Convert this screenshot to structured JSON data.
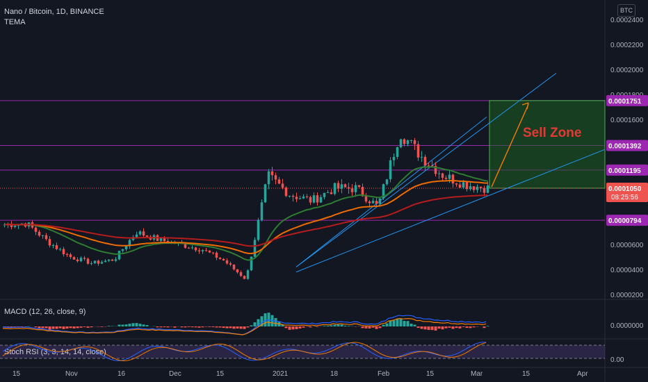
{
  "header": {
    "symbol_line": "Nano / Bitcoin, 1D, BINANCE",
    "indicator": "TEMA"
  },
  "currency_badge": "BTC",
  "price_axis": {
    "ticks": [
      "0.0002400",
      "0.0002200",
      "0.0002000",
      "0.0001800",
      "0.0001600",
      "0.0001400",
      "0.0001200",
      "0.0001000",
      "0.0000800",
      "0.0000600",
      "0.0000400",
      "0.0000200"
    ],
    "min": 2e-05,
    "max": 0.00024
  },
  "levels": [
    {
      "value": 0.0001751,
      "label": "0.0001751"
    },
    {
      "value": 0.0001392,
      "label": "0.0001392"
    },
    {
      "value": 0.0001195,
      "label": "0.0001195"
    },
    {
      "value": 7.94e-05,
      "label": "0.0000794"
    }
  ],
  "last_price": {
    "label": "0.0001050",
    "countdown": "08:25:56",
    "value": 0.000105
  },
  "annotation": {
    "text": "Sell Zone",
    "top": 0.0001751,
    "bottom": 0.000105
  },
  "time_axis": [
    "15",
    "Nov",
    "16",
    "Dec",
    "15",
    "2021",
    "18",
    "Feb",
    "15",
    "Mar",
    "15",
    "Apr"
  ],
  "macd": {
    "label": "MACD (12, 26, close, 9)",
    "tick": "0.0000000"
  },
  "stoch": {
    "label": "Stoch RSI (3, 3, 14, 14, close)",
    "tick": "0.00"
  },
  "colors": {
    "up": "#26a69a",
    "down": "#ef5350",
    "level": "#9c27b0",
    "channel": "#2196f3",
    "ema_fast": "#2e7d32",
    "ema_mid": "#ef6c00",
    "ema_slow": "#b71c1c",
    "zone": "#1b5e20",
    "zone_text": "#e53935",
    "arrow": "#f57c00"
  },
  "chart_data": {
    "type": "candlestick",
    "title": "Nano / Bitcoin, 1D, BINANCE",
    "x": [
      "Oct 15",
      "Nov",
      "Nov 16",
      "Dec",
      "Dec 15",
      "2021",
      "Jan 18",
      "Feb",
      "Feb 15",
      "Mar",
      "Mar 15",
      "Apr"
    ],
    "close_path": [
      {
        "x": "Oct 15",
        "y": 7.6e-05
      },
      {
        "x": "Oct 22",
        "y": 7.7e-05
      },
      {
        "x": "Nov",
        "y": 6.2e-05
      },
      {
        "x": "Nov 8",
        "y": 5e-05
      },
      {
        "x": "Nov 16",
        "y": 4.5e-05
      },
      {
        "x": "Nov 20",
        "y": 4.8e-05
      },
      {
        "x": "Nov 25",
        "y": 7e-05
      },
      {
        "x": "Dec",
        "y": 6.4e-05
      },
      {
        "x": "Dec 8",
        "y": 6e-05
      },
      {
        "x": "Dec 15",
        "y": 5.6e-05
      },
      {
        "x": "Dec 22",
        "y": 4.7e-05
      },
      {
        "x": "Dec 31",
        "y": 3.2e-05
      },
      {
        "x": "Jan 5",
        "y": 0.000115
      },
      {
        "x": "Jan 10",
        "y": 0.0001
      },
      {
        "x": "Jan 18",
        "y": 9.5e-05
      },
      {
        "x": "Jan 26",
        "y": 0.000105
      },
      {
        "x": "Feb",
        "y": 0.000105
      },
      {
        "x": "Feb 8",
        "y": 9e-05
      },
      {
        "x": "Feb 12",
        "y": 0.00015
      },
      {
        "x": "Feb 15",
        "y": 0.00013
      },
      {
        "x": "Feb 20",
        "y": 0.000115
      },
      {
        "x": "Feb 25",
        "y": 0.000108
      },
      {
        "x": "Mar",
        "y": 0.000105
      }
    ],
    "ylim": [
      2e-05,
      0.00024
    ],
    "series": [
      {
        "name": "TEMA",
        "color": "#2e7d32"
      }
    ]
  }
}
